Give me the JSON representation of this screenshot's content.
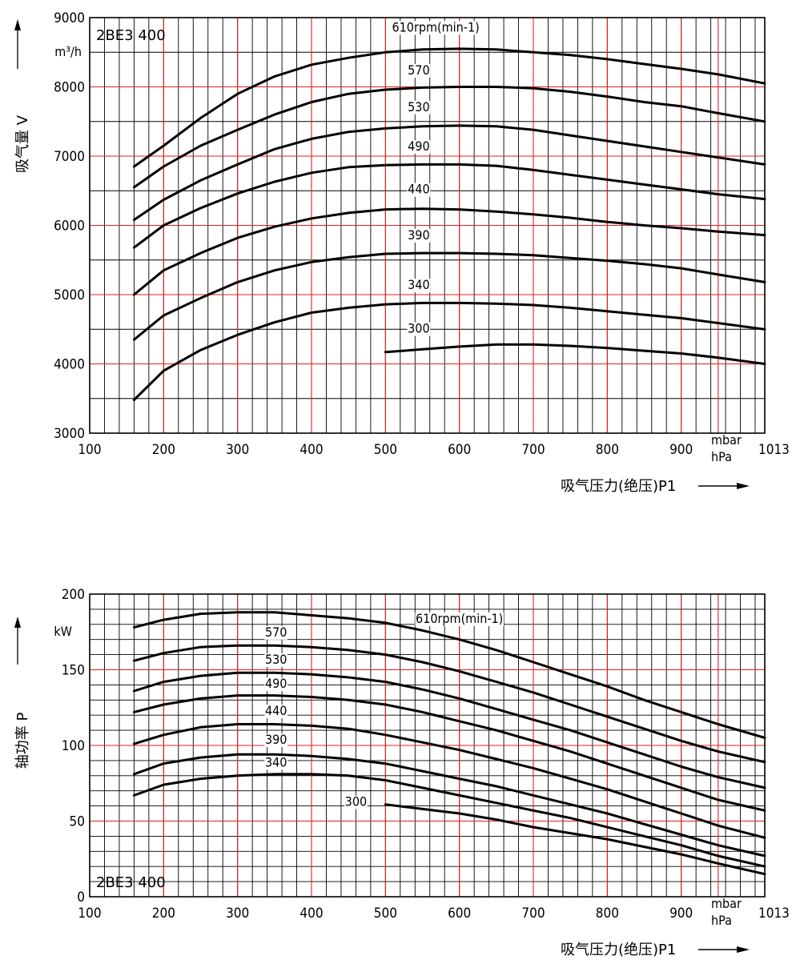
{
  "colors": {
    "major_grid": "#e32020",
    "minor_grid": "#000000",
    "curve": "#000000"
  },
  "chart_data": [
    {
      "type": "line",
      "model_label": "2BE3 400",
      "ylabel": "吸气量 V",
      "yunit": "m³/h",
      "xlabel": "吸气压力(绝压)P1",
      "xunit_1": "mbar",
      "xunit_2": "hPa",
      "xlim": [
        100,
        1013
      ],
      "ylim": [
        3000,
        9000
      ],
      "x_ticks": [
        "100",
        "200",
        "300",
        "400",
        "500",
        "600",
        "700",
        "800",
        "900",
        "1013"
      ],
      "y_ticks": [
        "3000",
        "4000",
        "5000",
        "6000",
        "7000",
        "8000",
        "9000"
      ],
      "grid": true,
      "series": [
        {
          "name": "610rpm(min-1)",
          "x": [
            160,
            200,
            250,
            300,
            350,
            400,
            450,
            500,
            550,
            600,
            650,
            700,
            750,
            800,
            850,
            900,
            950,
            1013
          ],
          "y": [
            6850,
            7150,
            7550,
            7900,
            8150,
            8320,
            8420,
            8500,
            8540,
            8550,
            8540,
            8500,
            8460,
            8400,
            8330,
            8260,
            8180,
            8050
          ]
        },
        {
          "name": "570",
          "x": [
            160,
            200,
            250,
            300,
            350,
            400,
            450,
            500,
            550,
            600,
            650,
            700,
            750,
            800,
            850,
            900,
            950,
            1013
          ],
          "y": [
            6550,
            6850,
            7150,
            7380,
            7600,
            7780,
            7900,
            7960,
            7990,
            8000,
            8000,
            7980,
            7930,
            7860,
            7780,
            7720,
            7620,
            7500
          ]
        },
        {
          "name": "530",
          "x": [
            160,
            200,
            250,
            300,
            350,
            400,
            450,
            500,
            550,
            600,
            650,
            700,
            750,
            800,
            850,
            900,
            950,
            1013
          ],
          "y": [
            6080,
            6370,
            6650,
            6880,
            7100,
            7250,
            7350,
            7400,
            7430,
            7440,
            7430,
            7380,
            7300,
            7220,
            7140,
            7060,
            6980,
            6880
          ]
        },
        {
          "name": "490",
          "x": [
            160,
            200,
            250,
            300,
            350,
            400,
            450,
            500,
            550,
            600,
            650,
            700,
            750,
            800,
            850,
            900,
            950,
            1013
          ],
          "y": [
            5680,
            6000,
            6250,
            6460,
            6630,
            6760,
            6840,
            6870,
            6880,
            6880,
            6860,
            6800,
            6730,
            6660,
            6590,
            6520,
            6450,
            6380
          ]
        },
        {
          "name": "440",
          "x": [
            160,
            200,
            250,
            300,
            350,
            400,
            450,
            500,
            550,
            600,
            650,
            700,
            750,
            800,
            850,
            900,
            950,
            1013
          ],
          "y": [
            5000,
            5350,
            5600,
            5820,
            5980,
            6100,
            6180,
            6230,
            6240,
            6230,
            6200,
            6160,
            6110,
            6050,
            6000,
            5960,
            5910,
            5860
          ]
        },
        {
          "name": "390",
          "x": [
            160,
            200,
            250,
            300,
            350,
            400,
            450,
            500,
            550,
            600,
            650,
            700,
            750,
            800,
            850,
            900,
            950,
            1013
          ],
          "y": [
            4350,
            4700,
            4950,
            5180,
            5350,
            5470,
            5540,
            5590,
            5600,
            5600,
            5590,
            5570,
            5530,
            5490,
            5440,
            5380,
            5290,
            5180
          ]
        },
        {
          "name": "340",
          "x": [
            160,
            200,
            250,
            300,
            350,
            400,
            450,
            500,
            550,
            600,
            650,
            700,
            750,
            800,
            850,
            900,
            950,
            1013
          ],
          "y": [
            3480,
            3900,
            4200,
            4420,
            4600,
            4740,
            4810,
            4860,
            4880,
            4880,
            4870,
            4850,
            4810,
            4760,
            4710,
            4660,
            4590,
            4500
          ]
        },
        {
          "name": "300",
          "x": [
            500,
            550,
            600,
            650,
            700,
            750,
            800,
            850,
            900,
            950,
            1013
          ],
          "y": [
            4170,
            4210,
            4250,
            4280,
            4280,
            4260,
            4230,
            4190,
            4150,
            4090,
            4000
          ]
        }
      ],
      "curve_labels": [
        {
          "text": "610rpm(min-1)",
          "x": 568,
          "y": 8800
        },
        {
          "text": "570",
          "x": 545,
          "y": 8180
        },
        {
          "text": "530",
          "x": 545,
          "y": 7650
        },
        {
          "text": "490",
          "x": 545,
          "y": 7080
        },
        {
          "text": "440",
          "x": 545,
          "y": 6460
        },
        {
          "text": "390",
          "x": 545,
          "y": 5800
        },
        {
          "text": "340",
          "x": 545,
          "y": 5080
        },
        {
          "text": "300",
          "x": 545,
          "y": 4450
        }
      ]
    },
    {
      "type": "line",
      "model_label": "2BE3 400",
      "ylabel": "轴功率 P",
      "yunit": "kW",
      "xlabel": "吸气压力(绝压)P1",
      "xunit_1": "mbar",
      "xunit_2": "hPa",
      "xlim": [
        100,
        1013
      ],
      "ylim": [
        0,
        200
      ],
      "x_ticks": [
        "100",
        "200",
        "300",
        "400",
        "500",
        "600",
        "700",
        "800",
        "900",
        "1013"
      ],
      "y_ticks": [
        "0",
        "50",
        "100",
        "150",
        "200"
      ],
      "grid": true,
      "series": [
        {
          "name": "610rpm(min-1)",
          "x": [
            160,
            200,
            250,
            300,
            350,
            400,
            450,
            500,
            550,
            600,
            650,
            700,
            750,
            800,
            850,
            900,
            950,
            1013
          ],
          "y": [
            178,
            183,
            187,
            188,
            188,
            186,
            184,
            181,
            176,
            170,
            163,
            155,
            147,
            139,
            130,
            122,
            114,
            105
          ]
        },
        {
          "name": "570",
          "x": [
            160,
            200,
            250,
            300,
            350,
            400,
            450,
            500,
            550,
            600,
            650,
            700,
            750,
            800,
            850,
            900,
            950,
            1013
          ],
          "y": [
            156,
            161,
            165,
            166,
            166,
            165,
            163,
            160,
            155,
            149,
            142,
            135,
            127,
            119,
            111,
            103,
            96,
            89
          ]
        },
        {
          "name": "530",
          "x": [
            160,
            200,
            250,
            300,
            350,
            400,
            450,
            500,
            550,
            600,
            650,
            700,
            750,
            800,
            850,
            900,
            950,
            1013
          ],
          "y": [
            136,
            142,
            146,
            148,
            148,
            147,
            145,
            142,
            137,
            131,
            124,
            117,
            110,
            102,
            94,
            86,
            79,
            72
          ]
        },
        {
          "name": "490",
          "x": [
            160,
            200,
            250,
            300,
            350,
            400,
            450,
            500,
            550,
            600,
            650,
            700,
            750,
            800,
            850,
            900,
            950,
            1013
          ],
          "y": [
            122,
            127,
            131,
            133,
            133,
            132,
            130,
            127,
            122,
            116,
            110,
            103,
            96,
            88,
            80,
            72,
            64,
            57
          ]
        },
        {
          "name": "440",
          "x": [
            160,
            200,
            250,
            300,
            350,
            400,
            450,
            500,
            550,
            600,
            650,
            700,
            750,
            800,
            850,
            900,
            950,
            1013
          ],
          "y": [
            101,
            107,
            112,
            114,
            114,
            113,
            111,
            107,
            102,
            97,
            91,
            85,
            78,
            71,
            63,
            55,
            47,
            39
          ]
        },
        {
          "name": "390",
          "x": [
            160,
            200,
            250,
            300,
            350,
            400,
            450,
            500,
            550,
            600,
            650,
            700,
            750,
            800,
            850,
            900,
            950,
            1013
          ],
          "y": [
            81,
            88,
            92,
            94,
            94,
            93,
            91,
            88,
            83,
            78,
            73,
            67,
            61,
            55,
            48,
            41,
            34,
            27
          ]
        },
        {
          "name": "340",
          "x": [
            160,
            200,
            250,
            300,
            350,
            400,
            450,
            500,
            550,
            600,
            650,
            700,
            750,
            800,
            850,
            900,
            950,
            1013
          ],
          "y": [
            67,
            74,
            78,
            80,
            81,
            81,
            80,
            77,
            72,
            67,
            62,
            57,
            52,
            46,
            40,
            34,
            27,
            20
          ]
        },
        {
          "name": "300",
          "x": [
            500,
            550,
            600,
            650,
            700,
            750,
            800,
            850,
            900,
            950,
            1013
          ],
          "y": [
            61,
            58,
            55,
            51,
            46,
            42,
            38,
            33,
            28,
            22,
            15
          ]
        }
      ],
      "curve_labels": [
        {
          "text": "610rpm(min-1)",
          "x": 600,
          "y": 181
        },
        {
          "text": "570",
          "x": 352,
          "y": 172
        },
        {
          "text": "530",
          "x": 352,
          "y": 154
        },
        {
          "text": "490",
          "x": 352,
          "y": 138
        },
        {
          "text": "440",
          "x": 352,
          "y": 120
        },
        {
          "text": "390",
          "x": 352,
          "y": 101
        },
        {
          "text": "340",
          "x": 352,
          "y": 86
        },
        {
          "text": "300",
          "x": 460,
          "y": 60
        }
      ]
    }
  ]
}
